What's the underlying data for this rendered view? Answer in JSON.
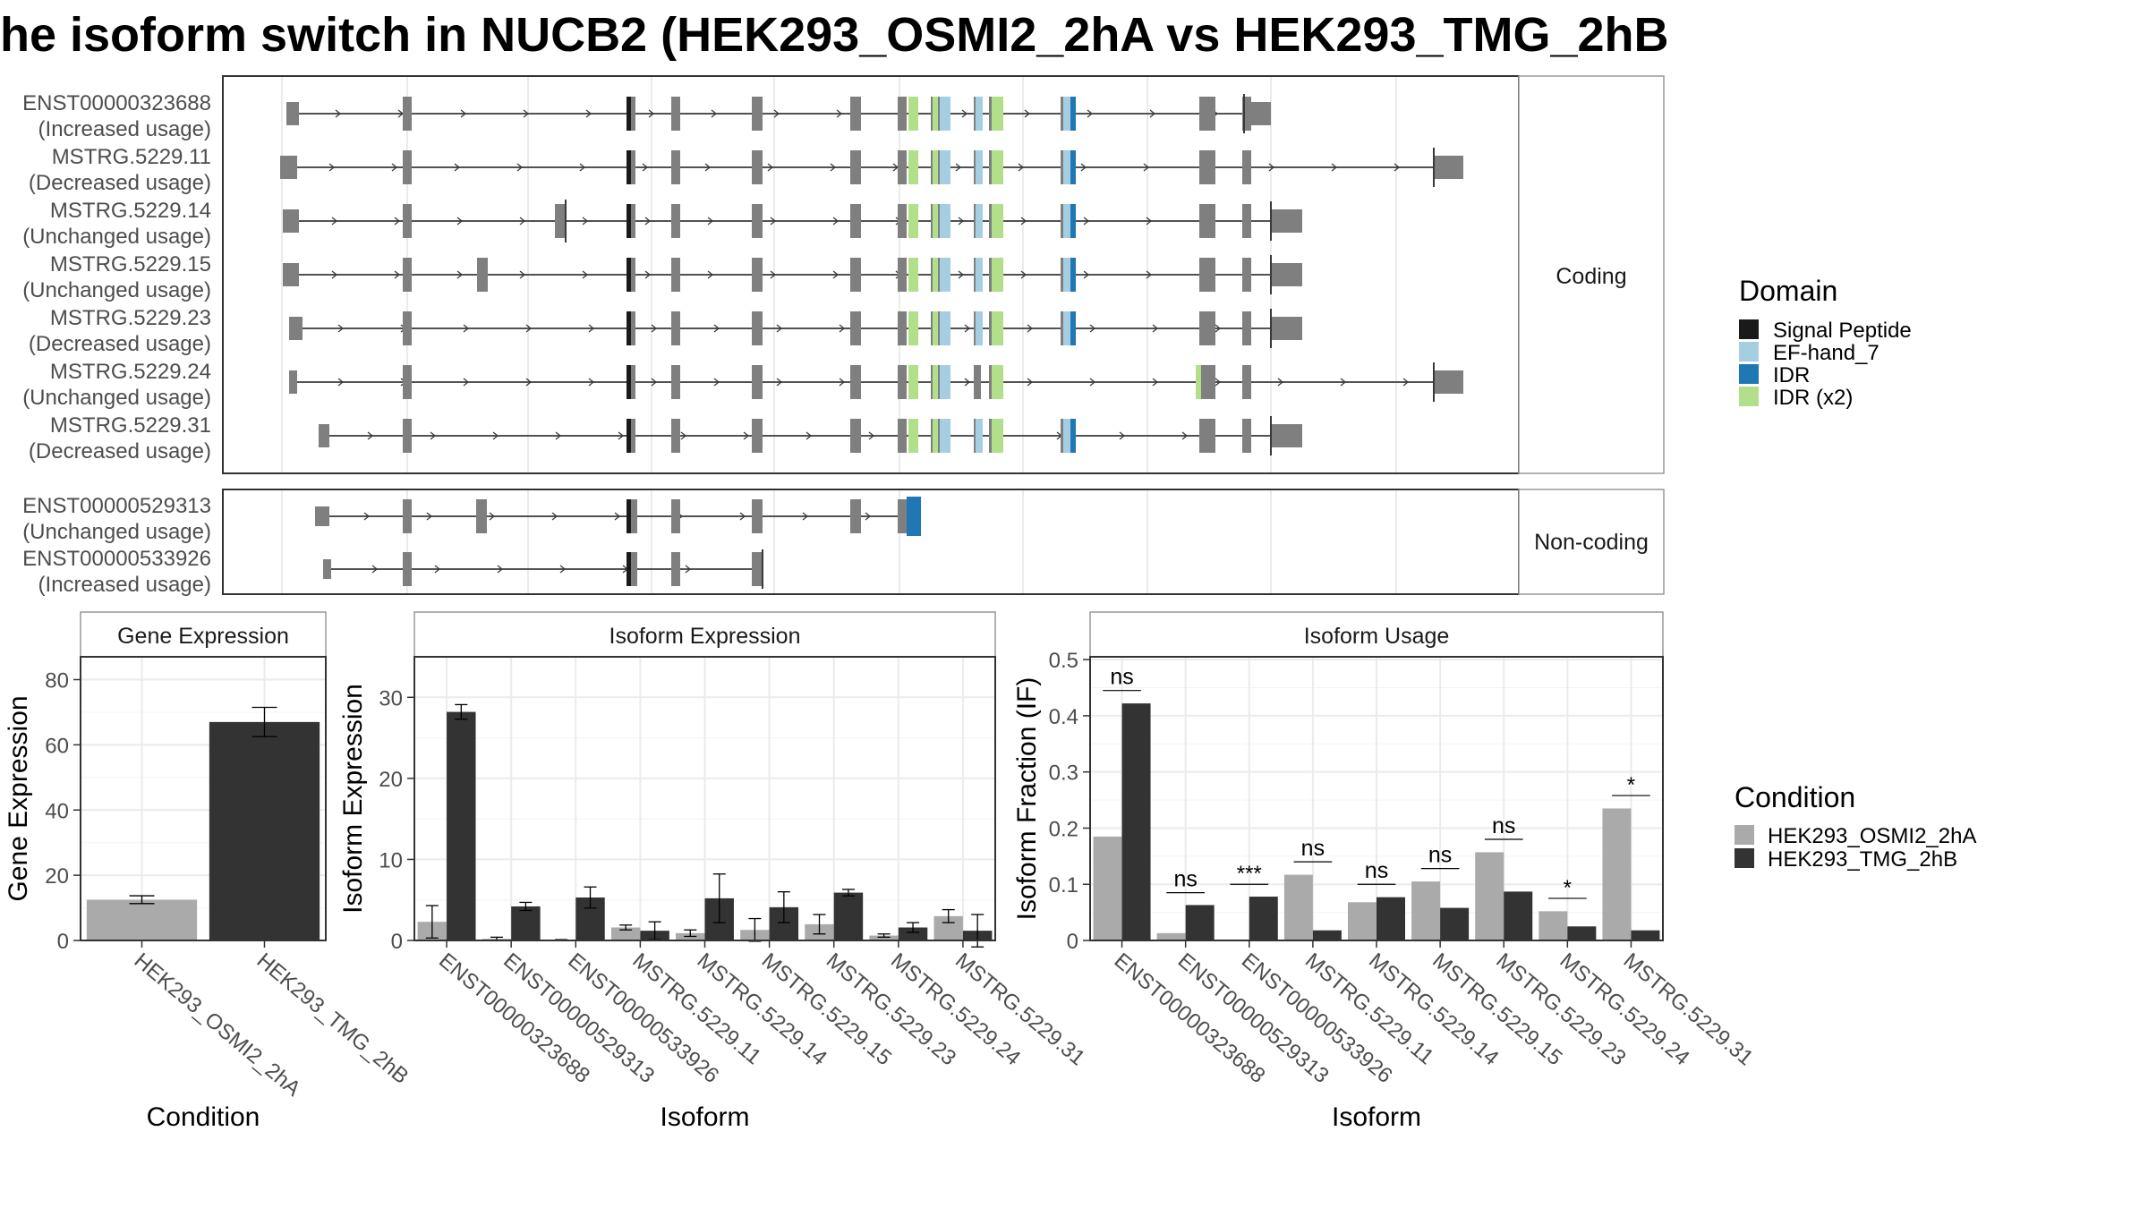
{
  "title": "he isoform switch in NUCB2 (HEK293_OSMI2_2hA vs HEK293_TMG_2hB",
  "colors": {
    "intron": "#3a3a3a",
    "exon": "#7f7f7f",
    "panel_border": "#333333",
    "strip_border": "#999999",
    "grid": "#ebebeb",
    "cond_a": "#aaaaaa",
    "cond_b": "#333333"
  },
  "structure": {
    "coding_strip": "Coding",
    "noncoding_strip": "Non-coding",
    "domain_colors": {
      "Signal Peptide": "#1a1a1a",
      "EF-hand_7": "#a6cee3",
      "IDR": "#1f78b4",
      "IDR (x2)": "#b2df8a"
    },
    "coding": [
      {
        "name": "ENST00000323688",
        "usage": "(Increased usage)",
        "start": 1,
        "end": 18,
        "utr5": [
          1
        ],
        "utr3": [
          18
        ],
        "domains": "full"
      },
      {
        "name": "MSTRG.5229.11",
        "usage": "(Decreased usage)",
        "start": 1,
        "end": 19,
        "utr5": [
          1
        ],
        "utr3": [
          19
        ],
        "domains": "full"
      },
      {
        "name": "MSTRG.5229.14",
        "usage": "(Unchanged usage)",
        "start": 1,
        "end": 18,
        "utr5": [
          1
        ],
        "utr3": [
          18
        ],
        "extra": "e14",
        "domains": "full"
      },
      {
        "name": "MSTRG.5229.15",
        "usage": "(Unchanged usage)",
        "start": 1,
        "end": 18,
        "utr5": [
          1
        ],
        "utr3": [
          18
        ],
        "extra": "e15",
        "domains": "full"
      },
      {
        "name": "MSTRG.5229.23",
        "usage": "(Decreased usage)",
        "start": 1,
        "end": 18,
        "utr5": [
          1
        ],
        "utr3": [
          18
        ],
        "domains": "full"
      },
      {
        "name": "MSTRG.5229.24",
        "usage": "(Unchanged usage)",
        "start": 1,
        "end": 19,
        "utr5": [
          1
        ],
        "utr3": [
          19
        ],
        "domains": "v24"
      },
      {
        "name": "MSTRG.5229.31",
        "usage": "(Decreased usage)",
        "start": 1,
        "end": 18,
        "utr5": [
          1
        ],
        "utr3": [
          18
        ],
        "domains": "full"
      }
    ],
    "noncoding": [
      {
        "name": "ENST00000529313",
        "usage": "(Unchanged usage)"
      },
      {
        "name": "ENST00000533926",
        "usage": "(Increased usage)"
      }
    ]
  },
  "legend_domain": {
    "title": "Domain",
    "items": [
      {
        "label": "Signal Peptide",
        "color": "#1a1a1a"
      },
      {
        "label": "EF-hand_7",
        "color": "#a6cee3"
      },
      {
        "label": "IDR",
        "color": "#1f78b4"
      },
      {
        "label": "IDR (x2)",
        "color": "#b2df8a"
      }
    ]
  },
  "legend_condition": {
    "title": "Condition",
    "items": [
      {
        "label": "HEK293_OSMI2_2hA",
        "color": "#aaaaaa"
      },
      {
        "label": "HEK293_TMG_2hB",
        "color": "#333333"
      }
    ]
  },
  "chart_data": [
    {
      "type": "bar",
      "title": "Gene Expression",
      "xlabel": "Condition",
      "ylabel": "Gene Expression",
      "ylim": [
        0,
        87
      ],
      "yticks": [
        0,
        20,
        40,
        60,
        80
      ],
      "categories": [
        "HEK293_OSMI2_2hA",
        "HEK293_TMG_2hB"
      ],
      "values": [
        12.5,
        67
      ],
      "errors": [
        1.2,
        4.5
      ],
      "grid": true
    },
    {
      "type": "bar",
      "title": "Isoform Expression",
      "xlabel": "Isoform",
      "ylabel": "Isoform Expression",
      "ylim": [
        0,
        35
      ],
      "yticks": [
        0,
        10,
        20,
        30
      ],
      "categories": [
        "ENST00000323688",
        "ENST00000529313",
        "ENST00000533926",
        "MSTRG.5229.11",
        "MSTRG.5229.14",
        "MSTRG.5229.15",
        "MSTRG.5229.23",
        "MSTRG.5229.24",
        "MSTRG.5229.31"
      ],
      "series": [
        {
          "name": "HEK293_OSMI2_2hA",
          "values": [
            2.3,
            0.2,
            0.05,
            1.6,
            0.9,
            1.3,
            2.0,
            0.6,
            3.0
          ],
          "errors": [
            2.0,
            0.2,
            0.05,
            0.3,
            0.4,
            1.4,
            1.2,
            0.2,
            0.8
          ]
        },
        {
          "name": "HEK293_TMG_2hB",
          "values": [
            28.2,
            4.2,
            5.3,
            1.2,
            5.2,
            4.1,
            5.9,
            1.6,
            1.2
          ],
          "errors": [
            0.9,
            0.5,
            1.3,
            1.1,
            3.0,
            1.9,
            0.4,
            0.6,
            2.0
          ]
        }
      ],
      "grid": true
    },
    {
      "type": "bar",
      "title": "Isoform Usage",
      "xlabel": "Isoform",
      "ylabel": "Isoform Fraction (IF)",
      "ylim": [
        0,
        0.505
      ],
      "yticks": [
        0.0,
        0.1,
        0.2,
        0.3,
        0.4,
        0.5
      ],
      "categories": [
        "ENST00000323688",
        "ENST00000529313",
        "ENST00000533926",
        "MSTRG.5229.11",
        "MSTRG.5229.14",
        "MSTRG.5229.15",
        "MSTRG.5229.23",
        "MSTRG.5229.24",
        "MSTRG.5229.31"
      ],
      "series": [
        {
          "name": "HEK293_OSMI2_2hA",
          "values": [
            0.185,
            0.013,
            0.0,
            0.117,
            0.068,
            0.105,
            0.157,
            0.052,
            0.235
          ]
        },
        {
          "name": "HEK293_TMG_2hB",
          "values": [
            0.422,
            0.063,
            0.078,
            0.018,
            0.077,
            0.058,
            0.087,
            0.025,
            0.018
          ]
        }
      ],
      "significance": [
        "ns",
        "ns",
        "***",
        "ns",
        "ns",
        "ns",
        "ns",
        "*",
        "*"
      ],
      "sig_line_y": [
        0.445,
        0.085,
        0.1,
        0.14,
        0.1,
        0.128,
        0.18,
        0.075,
        0.258
      ],
      "grid": true
    }
  ]
}
